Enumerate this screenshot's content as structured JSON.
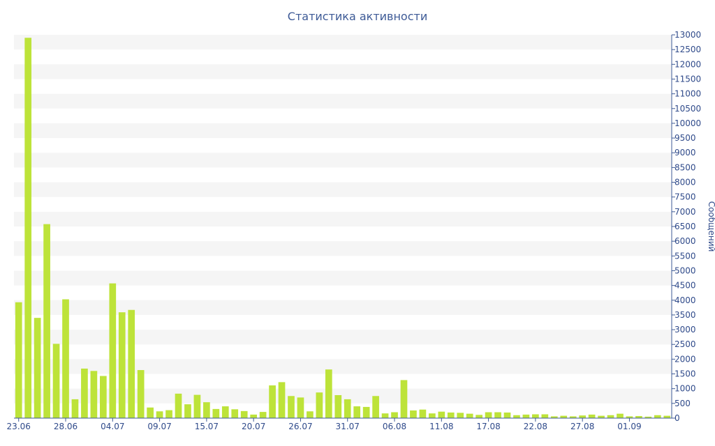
{
  "chart_data": {
    "type": "bar",
    "title": "Статистика активности",
    "xlabel": "",
    "ylabel": "Сообщений",
    "y_axis_side": "right",
    "ylim": [
      0,
      13000
    ],
    "y_ticks": [
      0,
      500,
      1000,
      1500,
      2000,
      2500,
      3000,
      3500,
      4000,
      4500,
      5000,
      5500,
      6000,
      6500,
      7000,
      7500,
      8000,
      8500,
      9000,
      9500,
      10000,
      10500,
      11000,
      11500,
      12000,
      12500,
      13000
    ],
    "x_tick_labels": [
      "23.06",
      "28.06",
      "04.07",
      "09.07",
      "15.07",
      "20.07",
      "26.07",
      "31.07",
      "06.08",
      "11.08",
      "17.08",
      "22.08",
      "27.08",
      "01.09"
    ],
    "x_tick_every": 5,
    "grid": "alternating horizontal bands",
    "colors": {
      "bar": "#bde339",
      "band": "#f5f5f5",
      "axis": "#3d5a96",
      "text": "#2f4a8a"
    },
    "values": [
      3930,
      12900,
      3400,
      6580,
      2520,
      4030,
      640,
      1680,
      1600,
      1430,
      4570,
      3590,
      3670,
      1630,
      360,
      230,
      270,
      830,
      470,
      790,
      540,
      310,
      400,
      300,
      240,
      120,
      210,
      1110,
      1220,
      750,
      700,
      230,
      870,
      1650,
      780,
      640,
      400,
      380,
      750,
      160,
      200,
      1290,
      260,
      290,
      160,
      220,
      190,
      180,
      150,
      110,
      200,
      200,
      190,
      100,
      120,
      130,
      130,
      60,
      80,
      60,
      90,
      120,
      80,
      100,
      150,
      60,
      70,
      50,
      100,
      80
    ]
  }
}
